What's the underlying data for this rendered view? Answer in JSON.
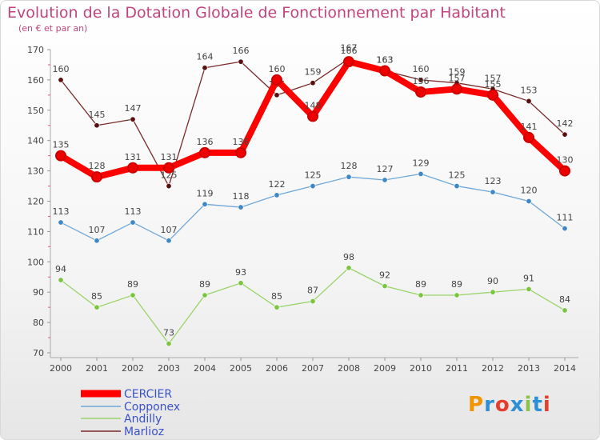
{
  "header": {
    "title": "Evolution de la Dotation Globale de Fonctionnement par Habitant",
    "subtitle": "(en € et par an)"
  },
  "logo": {
    "text": "Proxiti",
    "colors": [
      "#f29400",
      "#2d8fd5",
      "#e63e2e",
      "#2d8fd5",
      "#8bc34a",
      "#2d8fd5",
      "#e63e2e"
    ]
  },
  "chart_data": {
    "type": "line",
    "x": [
      "2000",
      "2001",
      "2002",
      "2003",
      "2004",
      "2005",
      "2006",
      "2007",
      "2008",
      "2009",
      "2010",
      "2011",
      "2012",
      "2013",
      "2014"
    ],
    "ylim": [
      70,
      170
    ],
    "yticks": [
      70,
      80,
      90,
      100,
      110,
      120,
      130,
      140,
      150,
      160,
      170
    ],
    "grid": false,
    "legend_position": "bottom-left",
    "series": [
      {
        "name": "Marlioz",
        "color": "#7a2a2a",
        "dot": "#5a0e0e",
        "values": [
          160,
          145,
          147,
          125,
          164,
          166,
          155,
          159,
          167,
          163,
          160,
          159,
          157,
          153,
          142
        ]
      },
      {
        "name": "Copponex",
        "color": "#6fa8d8",
        "dot": "#3f88c5",
        "values": [
          113,
          107,
          113,
          107,
          119,
          118,
          122,
          125,
          128,
          127,
          129,
          125,
          123,
          120,
          111
        ]
      },
      {
        "name": "Andilly",
        "color": "#9bd36a",
        "dot": "#7cc540",
        "values": [
          94,
          85,
          89,
          73,
          89,
          93,
          85,
          87,
          98,
          92,
          89,
          89,
          90,
          91,
          84
        ]
      },
      {
        "name": "CERCIER",
        "color": "#ff0000",
        "dot": "#ee0000",
        "values": [
          135,
          128,
          131,
          131,
          136,
          136,
          160,
          148,
          166,
          163,
          156,
          157,
          155,
          141,
          130
        ]
      }
    ],
    "data_labels": {
      "Marlioz": [
        "160",
        "145",
        "147",
        "125",
        "164",
        "166",
        "155",
        "159",
        "167",
        "163",
        "160",
        "159",
        "157",
        "153",
        "142"
      ],
      "Copponex": [
        "113",
        "107",
        "113",
        "107",
        "119",
        "118",
        "122",
        "125",
        "128",
        "127",
        "129",
        "125",
        "123",
        "120",
        "111"
      ],
      "Andilly": [
        "94",
        "85",
        "89",
        "73",
        "89",
        "93",
        "85",
        "87",
        "98",
        "92",
        "89",
        "89",
        "90",
        "91",
        "84"
      ],
      "CERCIER": [
        "135",
        "128",
        "131",
        "131",
        "136",
        "136",
        "160",
        "148",
        "166",
        "163",
        "156",
        "157",
        "155",
        "141",
        "130"
      ]
    },
    "legend": [
      "CERCIER",
      "Copponex",
      "Andilly",
      "Marlioz"
    ]
  }
}
